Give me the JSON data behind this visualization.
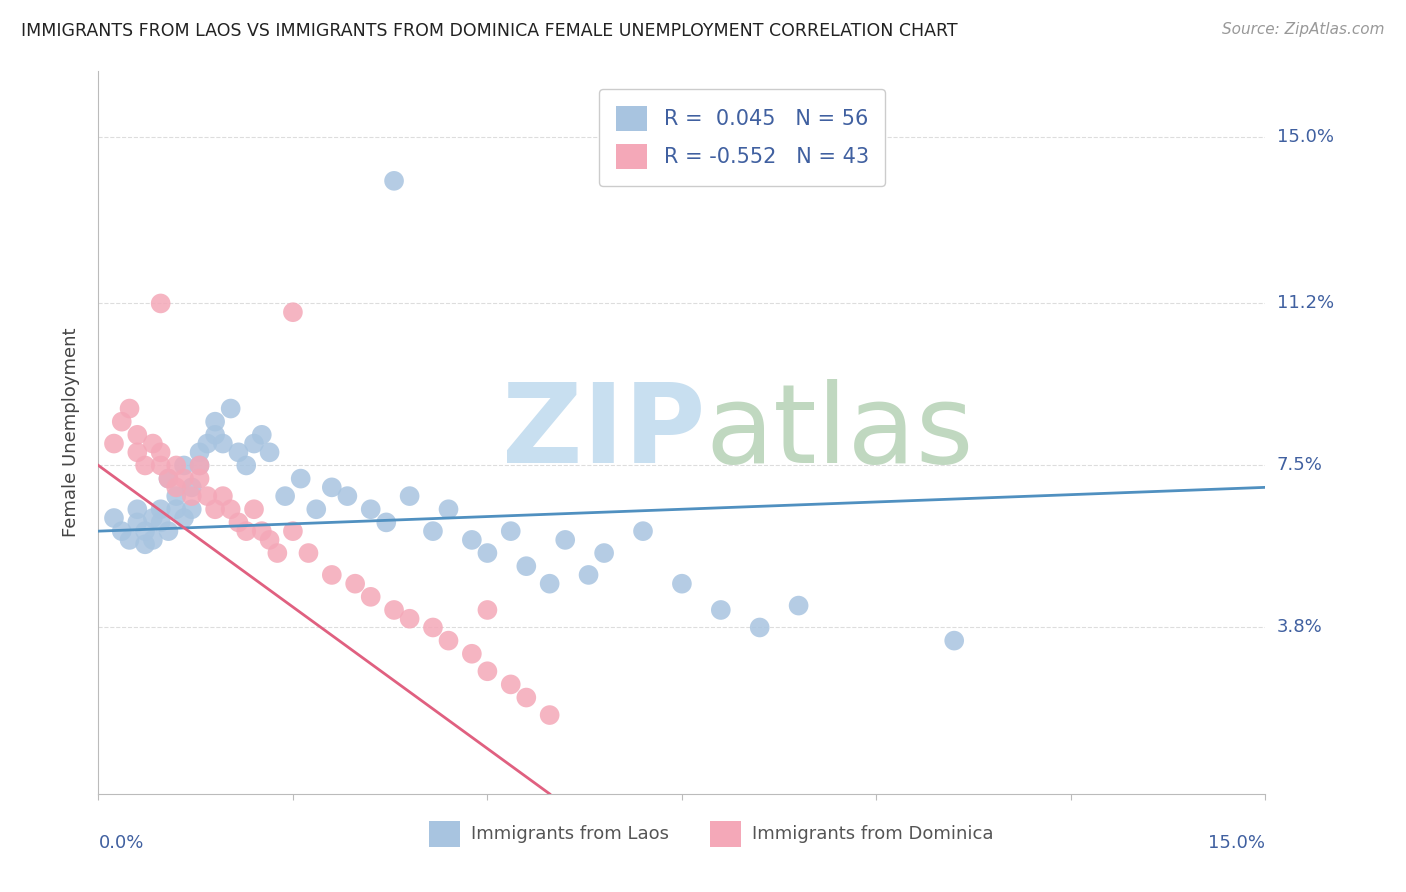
{
  "title": "IMMIGRANTS FROM LAOS VS IMMIGRANTS FROM DOMINICA FEMALE UNEMPLOYMENT CORRELATION CHART",
  "source": "Source: ZipAtlas.com",
  "ylabel": "Female Unemployment",
  "ytick_labels": [
    "15.0%",
    "11.2%",
    "7.5%",
    "3.8%"
  ],
  "ytick_values": [
    0.15,
    0.112,
    0.075,
    0.038
  ],
  "xlim": [
    0.0,
    0.15
  ],
  "ylim": [
    0.0,
    0.165
  ],
  "laos_color": "#a8c4e0",
  "dominica_color": "#f4a8b8",
  "laos_line_color": "#5090c0",
  "dominica_line_color": "#e06080",
  "laos_R": 0.045,
  "laos_N": 56,
  "dominica_R": -0.552,
  "dominica_N": 43,
  "legend_label_color": "#4060a0",
  "laos_x": [
    0.002,
    0.003,
    0.004,
    0.005,
    0.005,
    0.006,
    0.006,
    0.007,
    0.007,
    0.008,
    0.008,
    0.009,
    0.009,
    0.01,
    0.01,
    0.011,
    0.011,
    0.012,
    0.012,
    0.013,
    0.013,
    0.014,
    0.015,
    0.015,
    0.016,
    0.017,
    0.018,
    0.019,
    0.02,
    0.021,
    0.022,
    0.024,
    0.026,
    0.028,
    0.03,
    0.032,
    0.035,
    0.037,
    0.04,
    0.043,
    0.045,
    0.048,
    0.05,
    0.053,
    0.055,
    0.058,
    0.06,
    0.063,
    0.065,
    0.07,
    0.075,
    0.08,
    0.085,
    0.09,
    0.11,
    0.038
  ],
  "laos_y": [
    0.063,
    0.06,
    0.058,
    0.065,
    0.062,
    0.06,
    0.057,
    0.063,
    0.058,
    0.065,
    0.062,
    0.072,
    0.06,
    0.068,
    0.065,
    0.075,
    0.063,
    0.07,
    0.065,
    0.075,
    0.078,
    0.08,
    0.085,
    0.082,
    0.08,
    0.088,
    0.078,
    0.075,
    0.08,
    0.082,
    0.078,
    0.068,
    0.072,
    0.065,
    0.07,
    0.068,
    0.065,
    0.062,
    0.068,
    0.06,
    0.065,
    0.058,
    0.055,
    0.06,
    0.052,
    0.048,
    0.058,
    0.05,
    0.055,
    0.06,
    0.048,
    0.042,
    0.038,
    0.043,
    0.035,
    0.14
  ],
  "dominica_x": [
    0.002,
    0.003,
    0.004,
    0.005,
    0.005,
    0.006,
    0.007,
    0.008,
    0.008,
    0.009,
    0.01,
    0.01,
    0.011,
    0.012,
    0.013,
    0.013,
    0.014,
    0.015,
    0.016,
    0.017,
    0.018,
    0.019,
    0.02,
    0.021,
    0.022,
    0.023,
    0.025,
    0.027,
    0.03,
    0.033,
    0.035,
    0.038,
    0.04,
    0.043,
    0.045,
    0.048,
    0.05,
    0.053,
    0.055,
    0.058,
    0.025,
    0.05,
    0.008
  ],
  "dominica_y": [
    0.08,
    0.085,
    0.088,
    0.078,
    0.082,
    0.075,
    0.08,
    0.075,
    0.078,
    0.072,
    0.075,
    0.07,
    0.072,
    0.068,
    0.075,
    0.072,
    0.068,
    0.065,
    0.068,
    0.065,
    0.062,
    0.06,
    0.065,
    0.06,
    0.058,
    0.055,
    0.06,
    0.055,
    0.05,
    0.048,
    0.045,
    0.042,
    0.04,
    0.038,
    0.035,
    0.032,
    0.028,
    0.025,
    0.022,
    0.018,
    0.11,
    0.042,
    0.112
  ]
}
